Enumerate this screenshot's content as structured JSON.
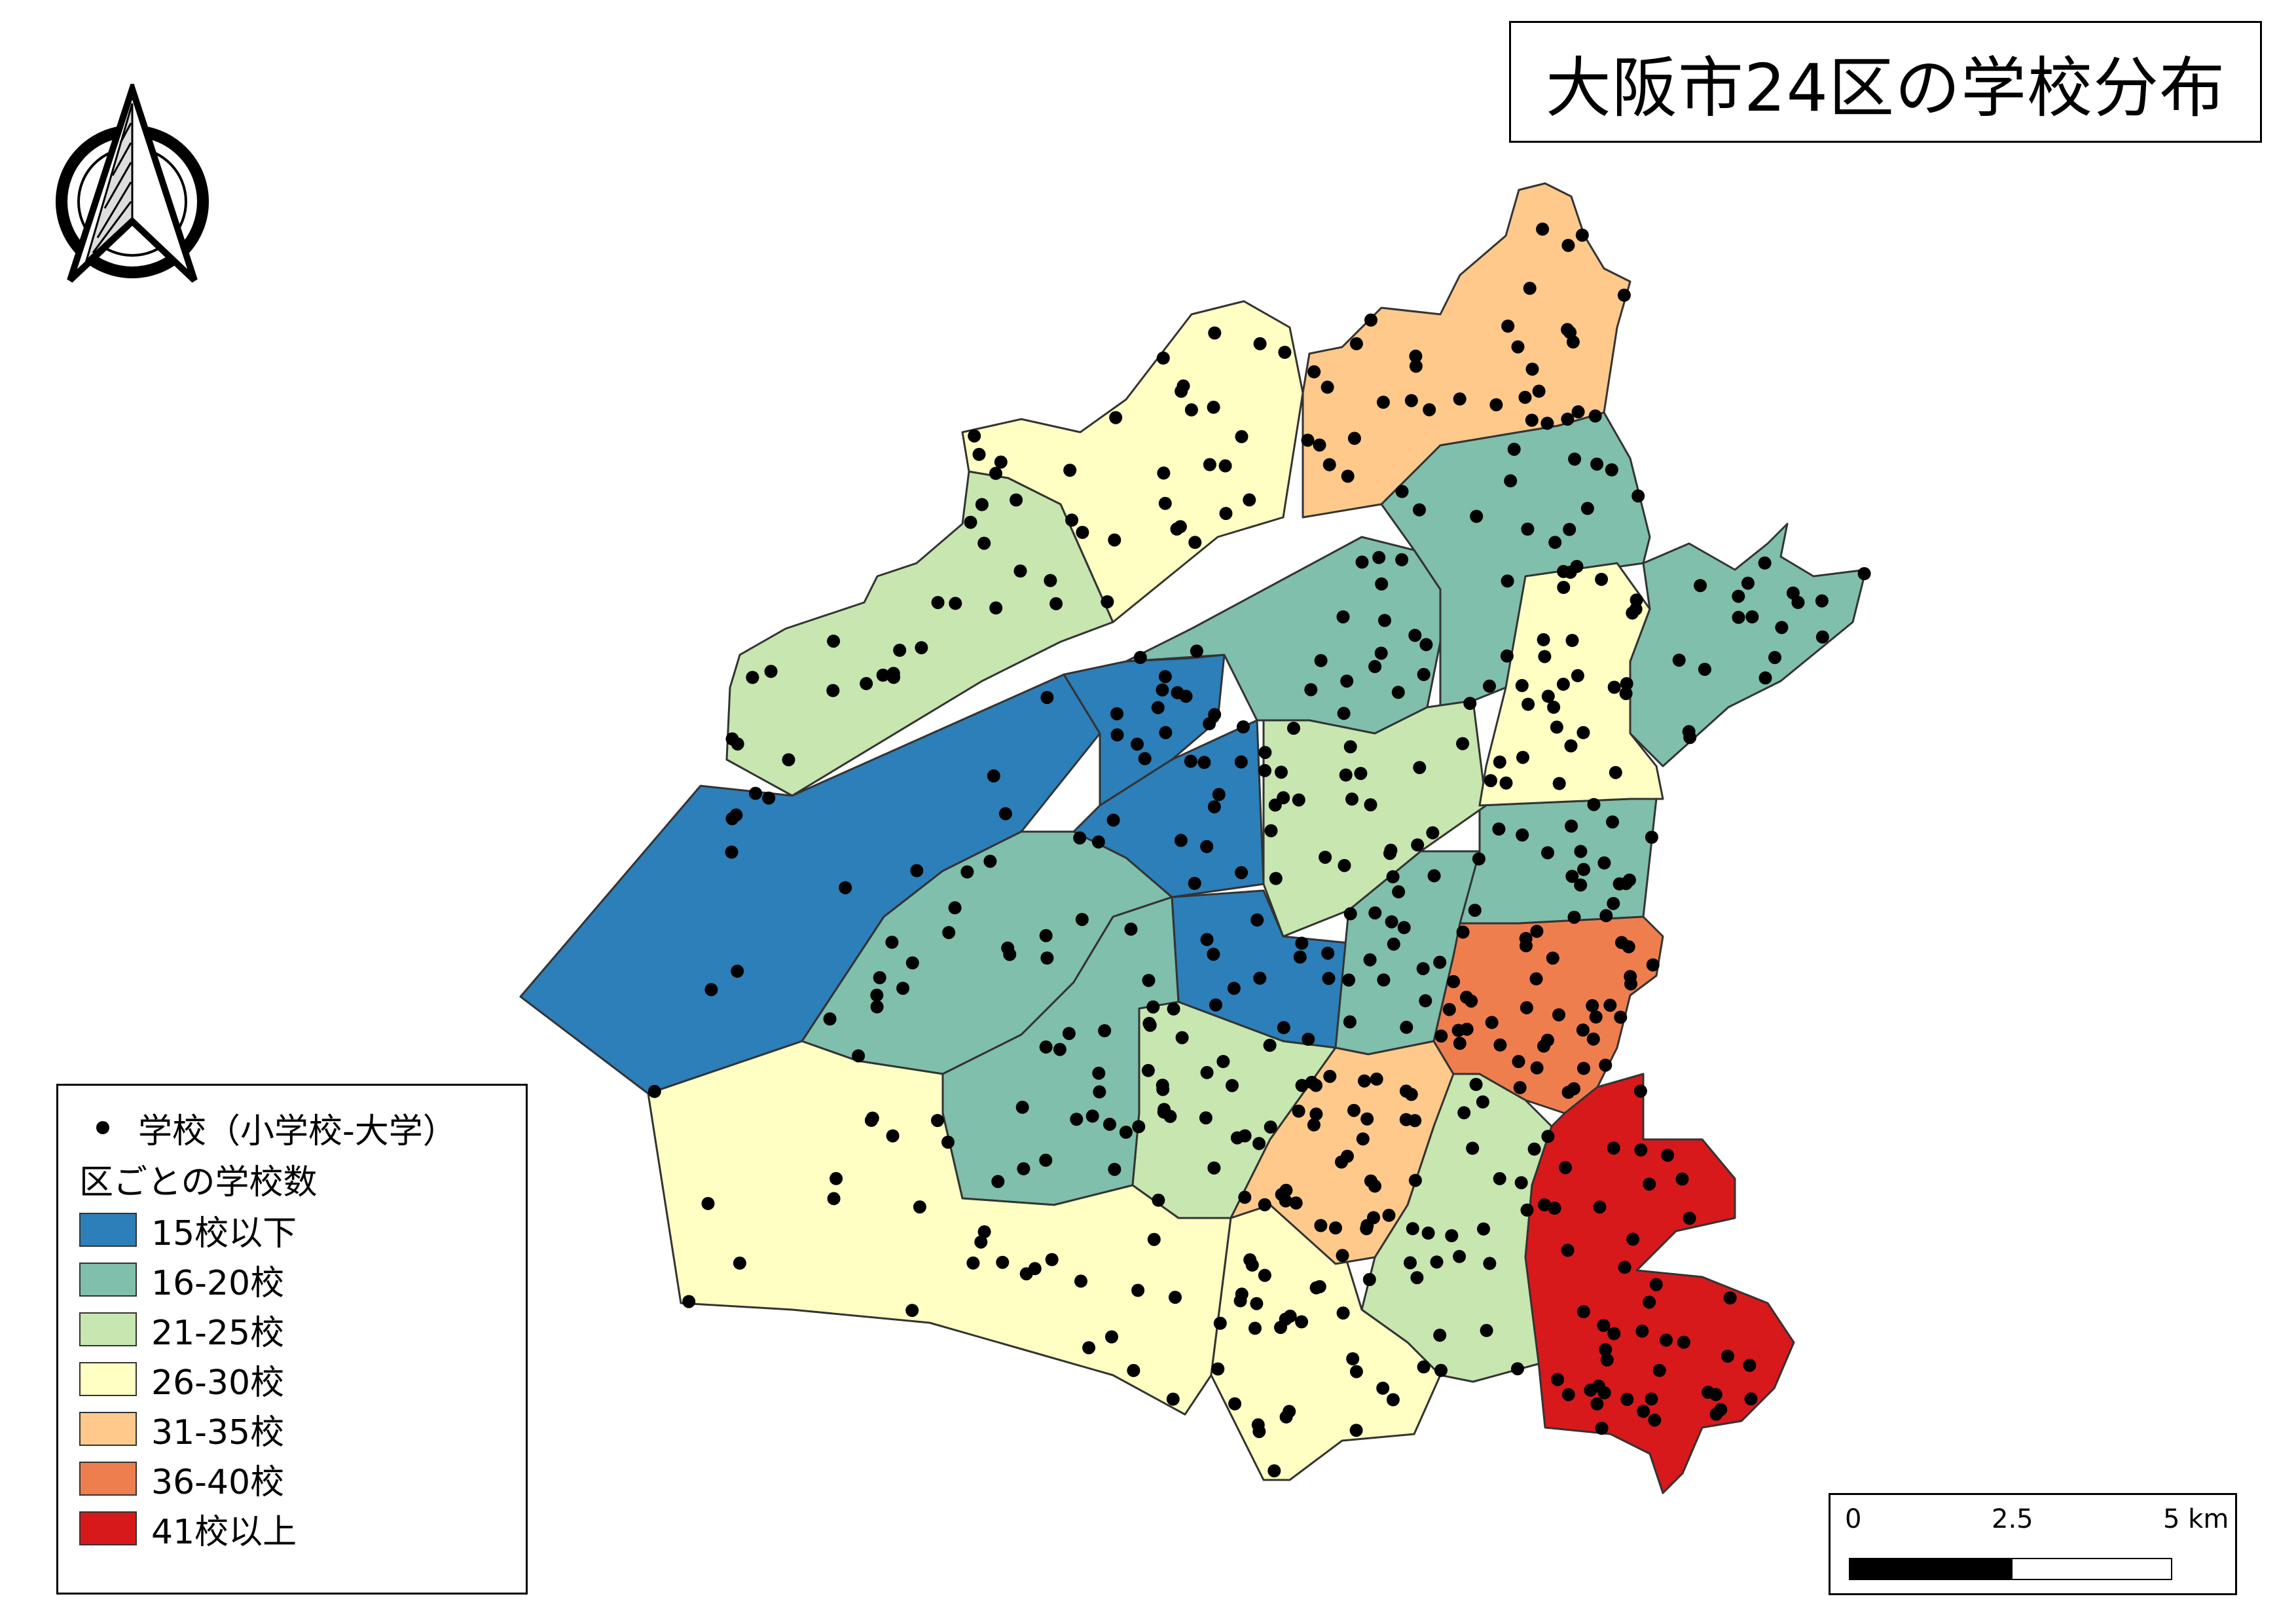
{
  "title": "大阪市24区の学校分布",
  "legend": {
    "point_label": "学校（小学校-大学）",
    "heading": "区ごとの学校数",
    "classes": [
      {
        "label": "15校以下",
        "color": "#2c7fb8"
      },
      {
        "label": "16-20校",
        "color": "#7fbfac"
      },
      {
        "label": "21-25校",
        "color": "#c7e6b0"
      },
      {
        "label": "26-30校",
        "color": "#ffffc3"
      },
      {
        "label": "31-35校",
        "color": "#fec98a"
      },
      {
        "label": "36-40校",
        "color": "#ef7e4f"
      },
      {
        "label": "41校以上",
        "color": "#d7191c"
      }
    ]
  },
  "scale_bar": {
    "labels": [
      "0",
      "2.5",
      "5 km"
    ]
  },
  "north_arrow": {
    "icon": "north-arrow-icon"
  },
  "map": {
    "subject": "Osaka City 24 wards school distribution",
    "school_point_color": "#000000",
    "boundary_color": "#333333"
  }
}
